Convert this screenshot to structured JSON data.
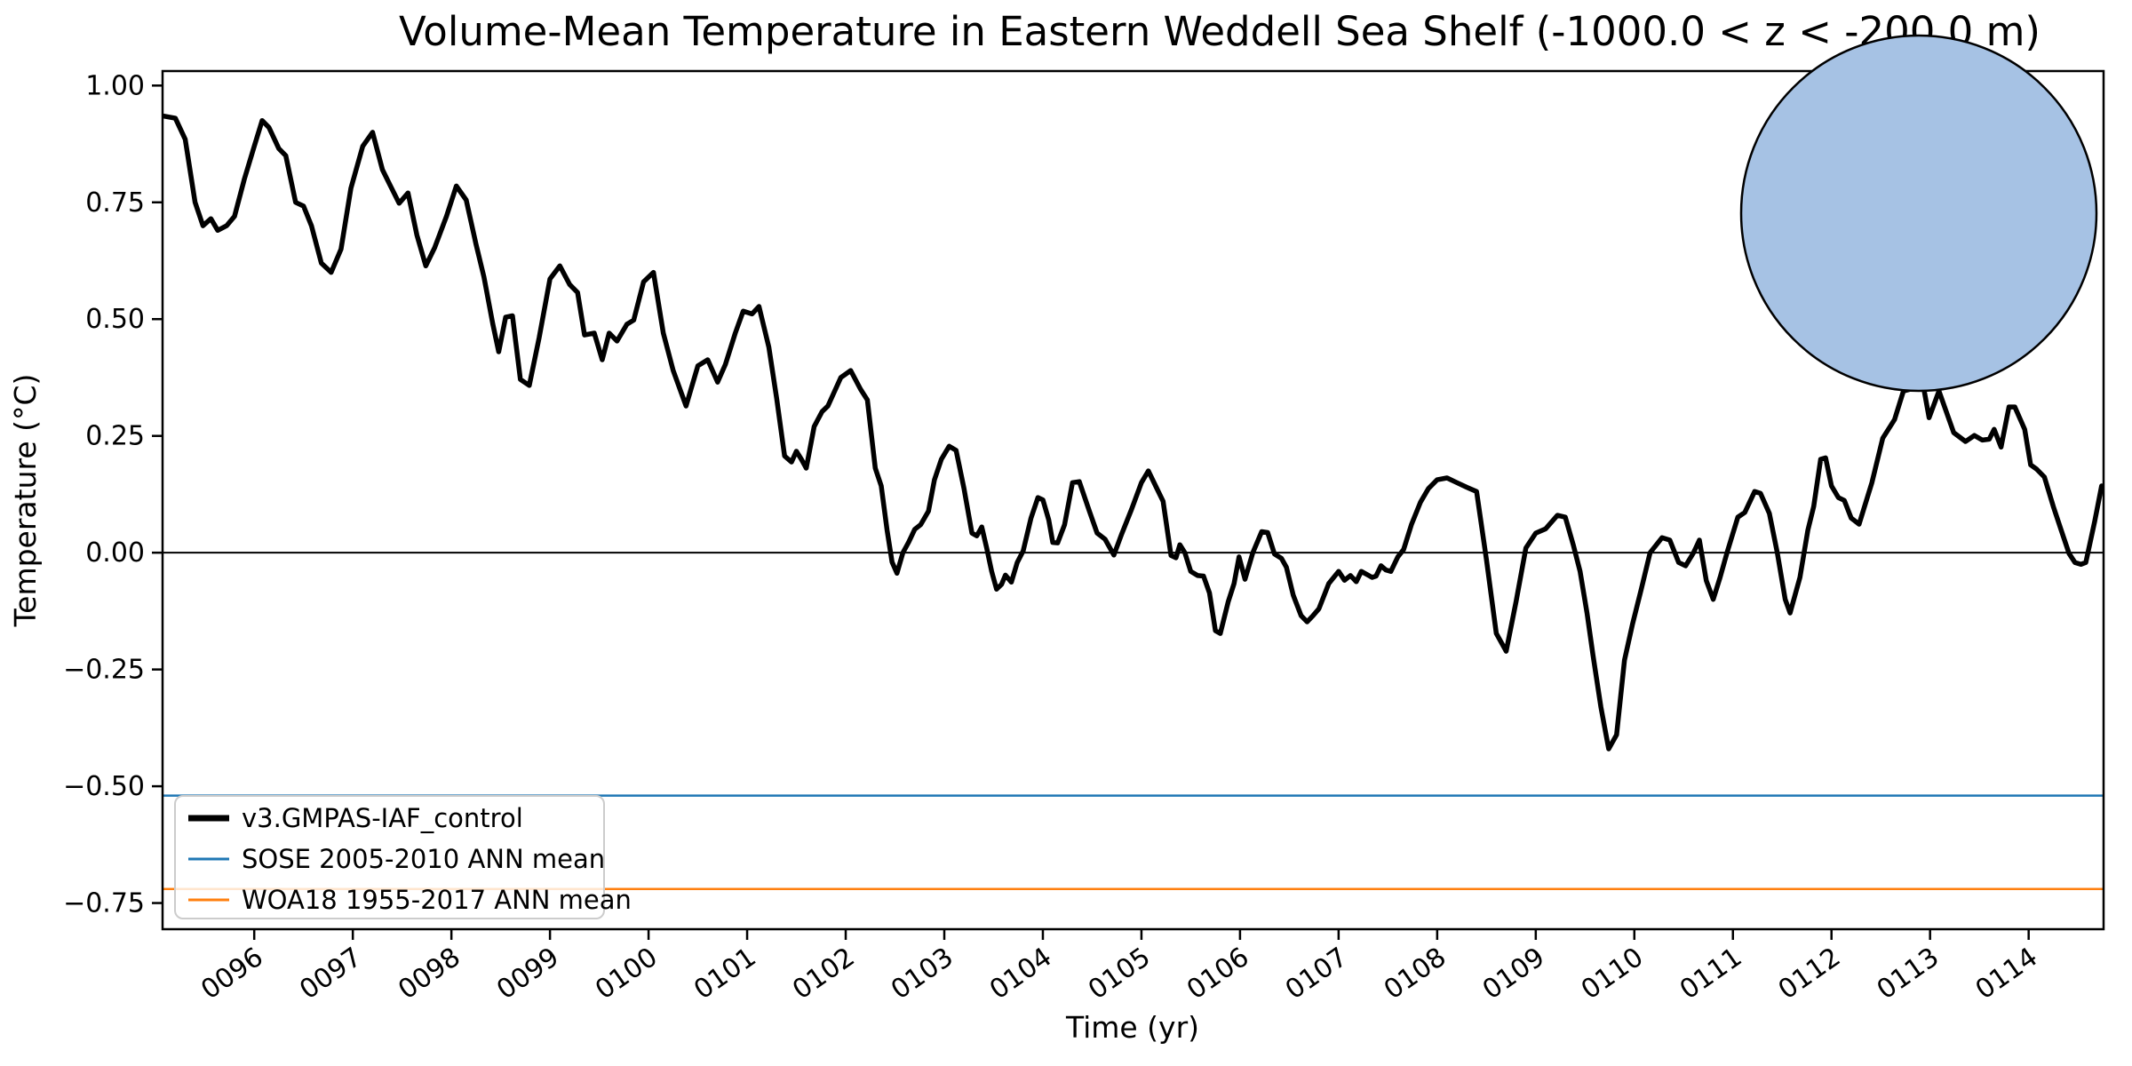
{
  "chart_data": {
    "type": "line",
    "title": "Volume-Mean Temperature in Eastern Weddell Sea Shelf (-1000.0 < z < -200.0 m)",
    "xlabel": "Time (yr)",
    "ylabel": "Temperature (°C)",
    "xlim": [
      95.07,
      114.76
    ],
    "ylim": [
      -0.806,
      1.031
    ],
    "grid": false,
    "legend_position": "lower left",
    "xticks": {
      "values": [
        96,
        97,
        98,
        99,
        100,
        101,
        102,
        103,
        104,
        105,
        106,
        107,
        108,
        109,
        110,
        111,
        112,
        113,
        114
      ],
      "labels": [
        "0096",
        "0097",
        "0098",
        "0099",
        "0100",
        "0101",
        "0102",
        "0103",
        "0104",
        "0105",
        "0106",
        "0107",
        "0108",
        "0109",
        "0110",
        "0111",
        "0112",
        "0113",
        "0114"
      ],
      "rotation_deg": -35
    },
    "yticks": {
      "values": [
        1.0,
        0.75,
        0.5,
        0.25,
        0.0,
        -0.25,
        -0.5,
        -0.75
      ],
      "labels": [
        "1.00",
        "0.75",
        "0.50",
        "0.25",
        "0.00",
        "−0.25",
        "−0.50",
        "−0.75"
      ]
    },
    "zero_line": 0.0,
    "series": [
      {
        "name": "v3.GMPAS-IAF_control",
        "kind": "timeseries",
        "color": "#000000",
        "linewidth": 5.5,
        "x": [
          95.07,
          95.2,
          95.3,
          95.4,
          95.48,
          95.56,
          95.63,
          95.72,
          95.8,
          95.9,
          96.0,
          96.08,
          96.15,
          96.25,
          96.32,
          96.42,
          96.5,
          96.58,
          96.68,
          96.78,
          96.88,
          96.98,
          97.1,
          97.2,
          97.3,
          97.38,
          97.47,
          97.56,
          97.65,
          97.74,
          97.83,
          97.95,
          98.05,
          98.15,
          98.25,
          98.33,
          98.42,
          98.48,
          98.55,
          98.62,
          98.7,
          98.79,
          98.89,
          99.0,
          99.1,
          99.2,
          99.28,
          99.35,
          99.45,
          99.53,
          99.6,
          99.68,
          99.78,
          99.85,
          99.95,
          100.05,
          100.15,
          100.25,
          100.38,
          100.5,
          100.6,
          100.7,
          100.78,
          100.88,
          100.96,
          101.05,
          101.12,
          101.22,
          101.3,
          101.38,
          101.45,
          101.5,
          101.55,
          101.6,
          101.68,
          101.76,
          101.82,
          101.95,
          102.05,
          102.15,
          102.22,
          102.3,
          102.36,
          102.42,
          102.47,
          102.52,
          102.58,
          102.64,
          102.7,
          102.76,
          102.84,
          102.9,
          102.97,
          103.05,
          103.12,
          103.2,
          103.28,
          103.33,
          103.38,
          103.43,
          103.48,
          103.53,
          103.58,
          103.62,
          103.68,
          103.74,
          103.8,
          103.88,
          103.95,
          104.0,
          104.06,
          104.1,
          104.15,
          104.22,
          104.3,
          104.37,
          104.47,
          104.55,
          104.63,
          104.72,
          104.8,
          104.9,
          105.0,
          105.07,
          105.15,
          105.22,
          105.3,
          105.35,
          105.39,
          105.44,
          105.5,
          105.57,
          105.63,
          105.69,
          105.75,
          105.8,
          105.88,
          105.94,
          105.99,
          106.05,
          106.13,
          106.22,
          106.28,
          106.35,
          106.42,
          106.47,
          106.54,
          106.62,
          106.68,
          106.74,
          106.8,
          106.9,
          107.0,
          107.06,
          107.12,
          107.18,
          107.23,
          107.29,
          107.34,
          107.38,
          107.43,
          107.48,
          107.53,
          107.6,
          107.66,
          107.74,
          107.83,
          107.91,
          108.0,
          108.1,
          108.2,
          108.3,
          108.4,
          108.5,
          108.6,
          108.7,
          108.8,
          108.9,
          109.0,
          109.1,
          109.22,
          109.3,
          109.38,
          109.45,
          109.52,
          109.58,
          109.66,
          109.74,
          109.82,
          109.9,
          109.98,
          110.07,
          110.16,
          110.28,
          110.36,
          110.45,
          110.52,
          110.6,
          110.66,
          110.73,
          110.8,
          110.87,
          110.94,
          111.05,
          111.12,
          111.22,
          111.28,
          111.37,
          111.45,
          111.53,
          111.58,
          111.68,
          111.76,
          111.82,
          111.89,
          111.94,
          112.0,
          112.07,
          112.13,
          112.2,
          112.28,
          112.41,
          112.52,
          112.64,
          112.73,
          112.8,
          112.93,
          112.99,
          113.09,
          113.24,
          113.36,
          113.45,
          113.53,
          113.6,
          113.65,
          113.72,
          113.8,
          113.86,
          113.96,
          114.02,
          114.08,
          114.16,
          114.25,
          114.34,
          114.41,
          114.47,
          114.53,
          114.58,
          114.67,
          114.74
        ],
        "y": [
          0.935,
          0.93,
          0.885,
          0.75,
          0.7,
          0.715,
          0.69,
          0.7,
          0.72,
          0.8,
          0.87,
          0.925,
          0.91,
          0.865,
          0.85,
          0.75,
          0.742,
          0.7,
          0.62,
          0.6,
          0.65,
          0.78,
          0.87,
          0.9,
          0.82,
          0.786,
          0.748,
          0.77,
          0.68,
          0.614,
          0.653,
          0.72,
          0.785,
          0.755,
          0.66,
          0.59,
          0.49,
          0.43,
          0.504,
          0.507,
          0.371,
          0.358,
          0.46,
          0.586,
          0.614,
          0.574,
          0.557,
          0.466,
          0.47,
          0.413,
          0.47,
          0.453,
          0.489,
          0.498,
          0.58,
          0.6,
          0.47,
          0.39,
          0.314,
          0.4,
          0.413,
          0.365,
          0.403,
          0.47,
          0.517,
          0.511,
          0.527,
          0.44,
          0.33,
          0.207,
          0.194,
          0.217,
          0.2,
          0.181,
          0.27,
          0.302,
          0.314,
          0.375,
          0.39,
          0.35,
          0.327,
          0.181,
          0.143,
          0.048,
          -0.02,
          -0.044,
          0.0,
          0.023,
          0.05,
          0.06,
          0.089,
          0.156,
          0.2,
          0.228,
          0.219,
          0.137,
          0.042,
          0.036,
          0.055,
          0.01,
          -0.04,
          -0.078,
          -0.068,
          -0.048,
          -0.063,
          -0.021,
          0.004,
          0.074,
          0.118,
          0.113,
          0.07,
          0.022,
          0.021,
          0.06,
          0.15,
          0.152,
          0.09,
          0.042,
          0.029,
          -0.005,
          0.04,
          0.093,
          0.15,
          0.175,
          0.14,
          0.11,
          -0.006,
          -0.011,
          0.017,
          0.0,
          -0.04,
          -0.049,
          -0.05,
          -0.086,
          -0.167,
          -0.173,
          -0.105,
          -0.066,
          -0.009,
          -0.057,
          0.0,
          0.045,
          0.043,
          -0.003,
          -0.012,
          -0.031,
          -0.091,
          -0.135,
          -0.148,
          -0.135,
          -0.12,
          -0.066,
          -0.04,
          -0.059,
          -0.049,
          -0.062,
          -0.04,
          -0.047,
          -0.053,
          -0.05,
          -0.028,
          -0.037,
          -0.04,
          -0.009,
          0.007,
          0.061,
          0.108,
          0.137,
          0.156,
          0.16,
          0.15,
          0.14,
          0.131,
          -0.015,
          -0.173,
          -0.211,
          -0.105,
          0.01,
          0.042,
          0.051,
          0.08,
          0.076,
          0.017,
          -0.04,
          -0.129,
          -0.219,
          -0.33,
          -0.42,
          -0.39,
          -0.23,
          -0.154,
          -0.078,
          0.0,
          0.032,
          0.027,
          -0.021,
          -0.028,
          0.0,
          0.027,
          -0.06,
          -0.1,
          -0.053,
          0.0,
          0.076,
          0.086,
          0.131,
          0.127,
          0.084,
          0.0,
          -0.1,
          -0.129,
          -0.053,
          0.048,
          0.099,
          0.2,
          0.203,
          0.143,
          0.118,
          0.112,
          0.074,
          0.061,
          0.15,
          0.245,
          0.285,
          0.346,
          0.35,
          0.359,
          0.289,
          0.346,
          0.257,
          0.238,
          0.251,
          0.241,
          0.243,
          0.264,
          0.226,
          0.312,
          0.312,
          0.264,
          0.188,
          0.179,
          0.162,
          0.099,
          0.042,
          -0.002,
          -0.021,
          -0.025,
          -0.021,
          0.067,
          0.143
        ]
      },
      {
        "name": "SOSE 2005-2010 ANN mean",
        "kind": "hline",
        "color": "#1f77b4",
        "linewidth": 2.5,
        "value": -0.52
      },
      {
        "name": "WOA18 1955-2017 ANN mean",
        "kind": "hline",
        "color": "#ff7f0e",
        "linewidth": 2.5,
        "value": -0.72
      }
    ]
  },
  "inset_map": {
    "ocean_color": "#a6c2e4",
    "land_color": "#f1efdc",
    "grid_color": "#999999",
    "edge_color": "#000000",
    "region_fill": "rgba(92,82,214,0.50)",
    "region_stroke": "#2a1fd0"
  },
  "legend": {
    "items": [
      {
        "label": "v3.GMPAS-IAF_control"
      },
      {
        "label": "SOSE 2005-2010 ANN mean"
      },
      {
        "label": "WOA18 1955-2017 ANN mean"
      }
    ]
  }
}
